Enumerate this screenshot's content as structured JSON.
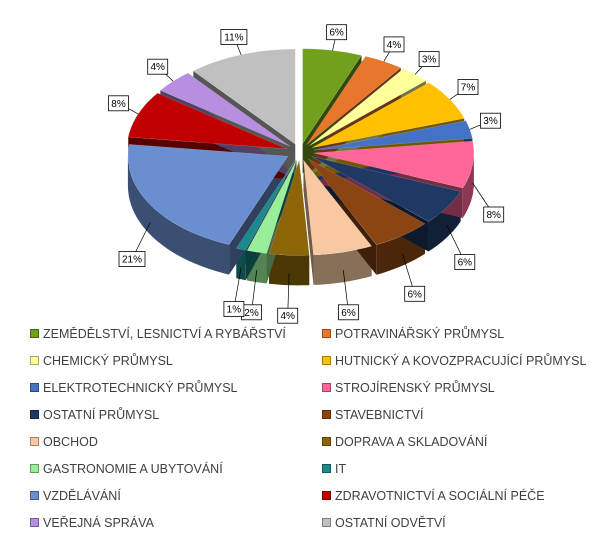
{
  "chart_data": {
    "type": "pie",
    "title": "",
    "slices": [
      {
        "name": "ZEMĚDĚLSTVÍ, LESNICTVÍ A RYBÁŘSTVÍ",
        "value": 6,
        "label": "6%",
        "color": "#70a01c"
      },
      {
        "name": "POTRAVINÁŘSKÝ PRŮMYSL",
        "value": 4,
        "label": "4%",
        "color": "#e8762d"
      },
      {
        "name": "CHEMICKÝ PRŮMYSL",
        "value": 3,
        "label": "3%",
        "color": "#ffff99"
      },
      {
        "name": "HUTNICKÝ A KOVOZPRACUJÍCÍ PRŮMYSL",
        "value": 7,
        "label": "7%",
        "color": "#ffc000"
      },
      {
        "name": "ELEKTROTECHNICKÝ PRŮMYSL",
        "value": 3,
        "label": "3%",
        "color": "#4472c4"
      },
      {
        "name": "STROJÍRENSKÝ PRŮMYSL",
        "value": 8,
        "label": "8%",
        "color": "#ff6699"
      },
      {
        "name": "OSTATNÍ PRŮMYSL",
        "value": 6,
        "label": "6%",
        "color": "#1f3864"
      },
      {
        "name": "STAVEBNICTVÍ",
        "value": 6,
        "label": "6%",
        "color": "#8b4513"
      },
      {
        "name": "OBCHOD",
        "value": 6,
        "label": "6%",
        "color": "#f8c9a0"
      },
      {
        "name": "DOPRAVA A SKLADOVÁNÍ",
        "value": 4,
        "label": "4%",
        "color": "#8b6508"
      },
      {
        "name": "GASTRONOMIE A UBYTOVÁNÍ",
        "value": 2,
        "label": "2%",
        "color": "#99ee99"
      },
      {
        "name": "IT",
        "value": 1,
        "label": "1%",
        "color": "#1a8a8a"
      },
      {
        "name": "VZDĚLÁVÁNÍ",
        "value": 21,
        "label": "21%",
        "color": "#6a8fd0"
      },
      {
        "name": "ZDRAVOTNICTVÍ A SOCIÁLNÍ PÉČE",
        "value": 8,
        "label": "8%",
        "color": "#c00000"
      },
      {
        "name": "VEŘEJNÁ SPRÁVA",
        "value": 4,
        "label": "4%",
        "color": "#b78ee0"
      },
      {
        "name": "OSTATNÍ ODVĚTVÍ",
        "value": 11,
        "label": "11%",
        "color": "#c0c0c0"
      }
    ],
    "legend_position": "bottom"
  }
}
